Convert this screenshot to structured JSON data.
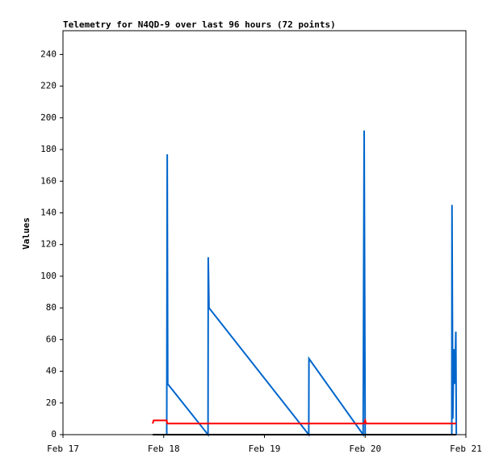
{
  "chart_data": {
    "type": "line",
    "title": "Telemetry for N4QD-9 over last 96 hours (72 points)",
    "y_label": "Values",
    "xlim": [
      17,
      21
    ],
    "xticks": [
      {
        "value": 17,
        "label": "Feb 17"
      },
      {
        "value": 18,
        "label": "Feb 18"
      },
      {
        "value": 19,
        "label": "Feb 19"
      },
      {
        "value": 20,
        "label": "Feb 20"
      },
      {
        "value": 21,
        "label": "Feb 21"
      }
    ],
    "ylim": [
      0,
      255
    ],
    "yticks": [
      0,
      20,
      40,
      60,
      80,
      100,
      120,
      140,
      160,
      180,
      200,
      220,
      240
    ],
    "series": [
      {
        "color": "#0066cc",
        "x": [
          18.03,
          18.035,
          18.04,
          18.44,
          18.442,
          18.45,
          19.44,
          19.442,
          19.98,
          19.99,
          20.0,
          20.86,
          20.862,
          20.87,
          20.88,
          20.89,
          20.9,
          20.905
        ],
        "values": [
          0,
          177,
          32,
          0,
          112,
          80,
          0,
          48,
          0,
          192,
          0,
          0,
          145,
          10,
          54,
          32,
          65,
          0
        ]
      },
      {
        "color": "#ff0000",
        "x": [
          17.89,
          17.9,
          18.03,
          18.035,
          19.99,
          20.0,
          20.01,
          20.905
        ],
        "values": [
          7,
          9,
          9,
          7,
          7,
          9,
          7,
          7
        ]
      },
      {
        "color": "#000000",
        "x": [
          17.89,
          20.905
        ],
        "values": [
          0,
          0
        ]
      }
    ]
  }
}
